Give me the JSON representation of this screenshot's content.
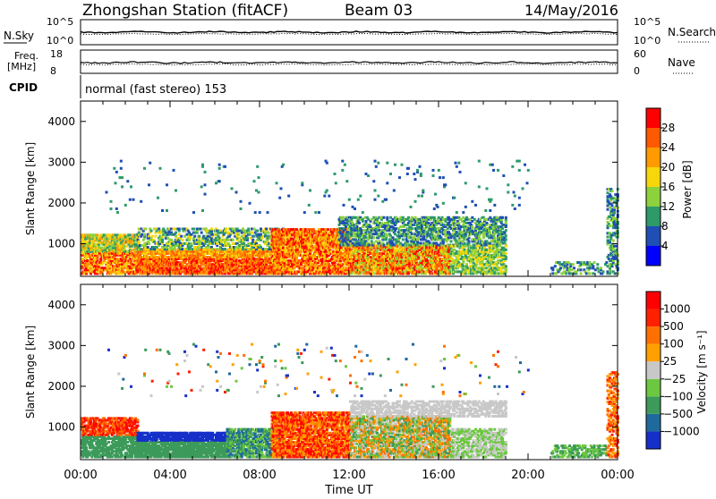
{
  "header": {
    "station": "Zhongshan Station (fitACF)",
    "beam": "Beam 03",
    "date": "14/May/2016"
  },
  "top_panels": {
    "nsky_label": "N.Sky",
    "nsky_ticks": [
      "10^5",
      "10^0"
    ],
    "nsearch_label": "N.Search",
    "nsearch_ticks": [
      "10^5",
      "10^0"
    ],
    "freq_label": "Freq.",
    "freq_unit": "[MHz]",
    "freq_ticks": [
      "18",
      "8"
    ],
    "nave_label": "Nave",
    "nave_ticks": [
      "60",
      "0"
    ],
    "cpid_label": "CPID",
    "cpid_text": "normal (fast stereo) 153"
  },
  "chart_data": [
    {
      "type": "heatmap",
      "name": "power",
      "ylabel": "Slant Range [km]",
      "yticks": [
        1000,
        2000,
        3000,
        4000
      ],
      "ylim": [
        200,
        4500
      ],
      "xticks_hours": [
        0,
        4,
        8,
        12,
        16,
        20,
        24
      ],
      "colorbar": {
        "label": "Power [dB]",
        "ticks": [
          "28",
          "24",
          "20",
          "16",
          "12",
          "8",
          "4"
        ],
        "colors": [
          "#0000ff",
          "#1f4fb4",
          "#2e9a6a",
          "#8dd13d",
          "#f7d60a",
          "#ff9a00",
          "#ff5a00",
          "#ff0000"
        ]
      }
    },
    {
      "type": "heatmap",
      "name": "velocity",
      "ylabel": "Slant Range [km]",
      "yticks": [
        1000,
        2000,
        3000,
        4000
      ],
      "ylim": [
        200,
        4500
      ],
      "xticks_hours": [
        0,
        4,
        8,
        12,
        16,
        20,
        24
      ],
      "xlabel": "Time UT",
      "xtick_labels": [
        "00:00",
        "04:00",
        "08:00",
        "12:00",
        "16:00",
        "20:00",
        "00:00"
      ],
      "colorbar": {
        "label": "Velocity [m s⁻¹]",
        "ticks": [
          "1000",
          "500",
          "100",
          "25",
          "−25",
          "−100",
          "−500",
          "−1000"
        ],
        "colors": [
          "#1530c8",
          "#1f6a9c",
          "#3c9a5a",
          "#6cc840",
          "#c8c8c8",
          "#ffa000",
          "#ff7000",
          "#ff2000",
          "#ff0000"
        ]
      }
    }
  ]
}
